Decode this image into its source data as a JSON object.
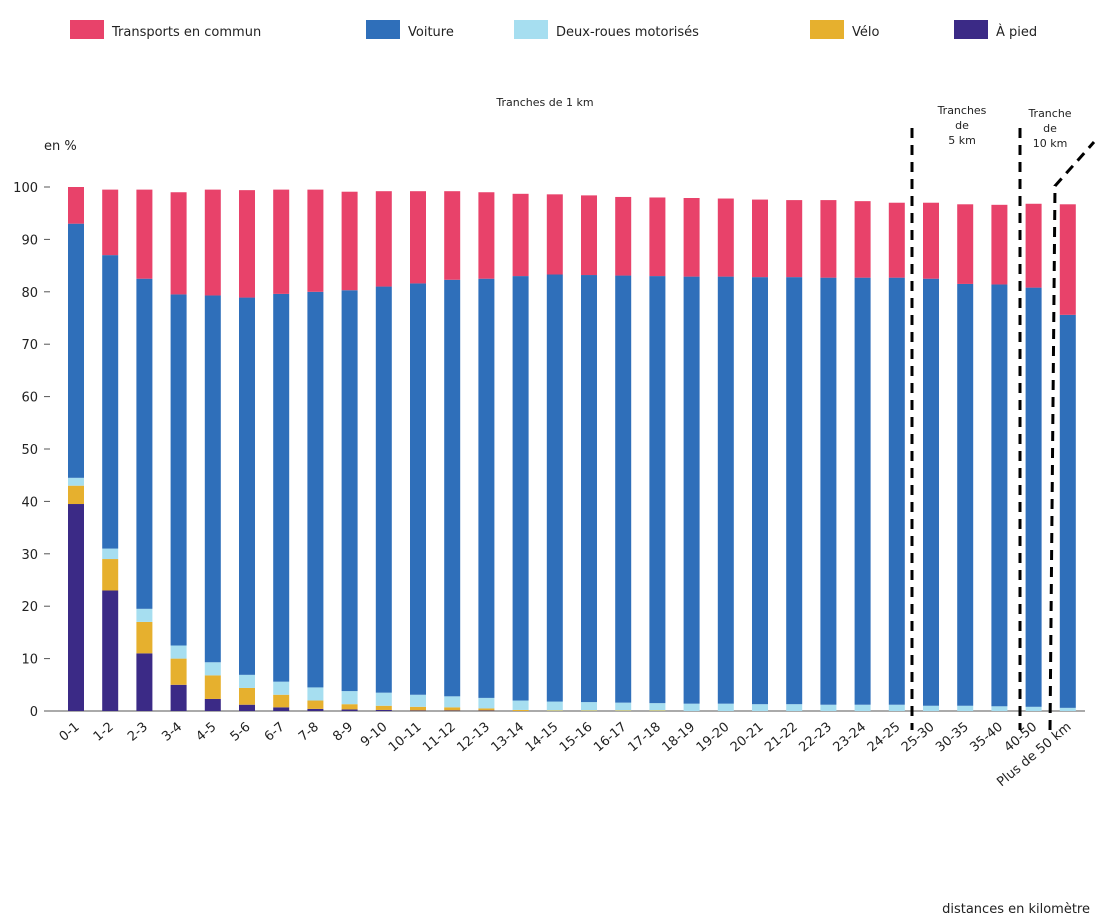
{
  "chart_data": {
    "type": "bar",
    "stacked": true,
    "ylabel": "en %",
    "xlabel": "distances en kilomètre",
    "ylim": [
      0,
      100
    ],
    "yticks": [
      0,
      10,
      20,
      30,
      40,
      50,
      60,
      70,
      80,
      90,
      100
    ],
    "grid": false,
    "legend_position": "top",
    "annotations": {
      "group1": "Tranches de 1 km",
      "group2": [
        "Tranches",
        "de",
        "5 km"
      ],
      "group3": [
        "Tranche",
        "de",
        "10 km"
      ]
    },
    "categories": [
      "0-1",
      "1-2",
      "2-3",
      "3-4",
      "4-5",
      "5-6",
      "6-7",
      "7-8",
      "8-9",
      "9-10",
      "10-11",
      "11-12",
      "12-13",
      "13-14",
      "14-15",
      "15-16",
      "16-17",
      "17-18",
      "18-19",
      "19-20",
      "20-21",
      "21-22",
      "22-23",
      "23-24",
      "24-25",
      "25-30",
      "30-35",
      "35-40",
      "40-50",
      "Plus de 50 km"
    ],
    "series": [
      {
        "name": "À pied",
        "color": "#3b2a86",
        "values": [
          39.5,
          23,
          11,
          5,
          2.3,
          1.2,
          0.7,
          0.4,
          0.3,
          0.2,
          0.1,
          0.1,
          0.1,
          0,
          0,
          0,
          0,
          0,
          0,
          0,
          0,
          0,
          0,
          0,
          0,
          0,
          0,
          0,
          0,
          0
        ]
      },
      {
        "name": "Vélo",
        "color": "#e6b02e",
        "values": [
          3.5,
          6,
          6,
          5,
          4.5,
          3.2,
          2.4,
          1.6,
          1.0,
          0.8,
          0.7,
          0.6,
          0.4,
          0.2,
          0.1,
          0.1,
          0.1,
          0.1,
          0,
          0,
          0,
          0,
          0,
          0,
          0,
          0,
          0,
          0,
          0,
          0
        ]
      },
      {
        "name": "Deux-roues motorisés",
        "color": "#a6def0",
        "values": [
          1.5,
          2,
          2.5,
          2.5,
          2.5,
          2.5,
          2.5,
          2.5,
          2.5,
          2.5,
          2.3,
          2.1,
          2.0,
          1.8,
          1.7,
          1.6,
          1.5,
          1.4,
          1.4,
          1.4,
          1.3,
          1.3,
          1.2,
          1.2,
          1.2,
          1.0,
          1.0,
          0.9,
          0.8,
          0.6
        ]
      },
      {
        "name": "Voiture",
        "color": "#2f6fba",
        "values": [
          48.5,
          56,
          63,
          67,
          70,
          72,
          74,
          75.5,
          76.5,
          77.5,
          78.5,
          79.5,
          80,
          81,
          81.5,
          81.5,
          81.5,
          81.5,
          81.5,
          81.5,
          81.5,
          81.5,
          81.5,
          81.5,
          81.5,
          81.5,
          80.5,
          80.5,
          80,
          75
        ]
      },
      {
        "name": "Transports en commun",
        "color": "#e8426a",
        "values": [
          7,
          12.5,
          17,
          19.5,
          20.2,
          20.5,
          19.9,
          19.5,
          18.8,
          18.2,
          17.6,
          16.9,
          16.5,
          15.7,
          15.3,
          15.2,
          15,
          15,
          15,
          14.9,
          14.8,
          14.7,
          14.8,
          14.6,
          14.3,
          14.5,
          15.2,
          15.2,
          16,
          21.1
        ]
      }
    ]
  },
  "legend_order": [
    "Transports en commun",
    "Voiture",
    "Deux-roues motorisés",
    "Vélo",
    "À pied"
  ]
}
